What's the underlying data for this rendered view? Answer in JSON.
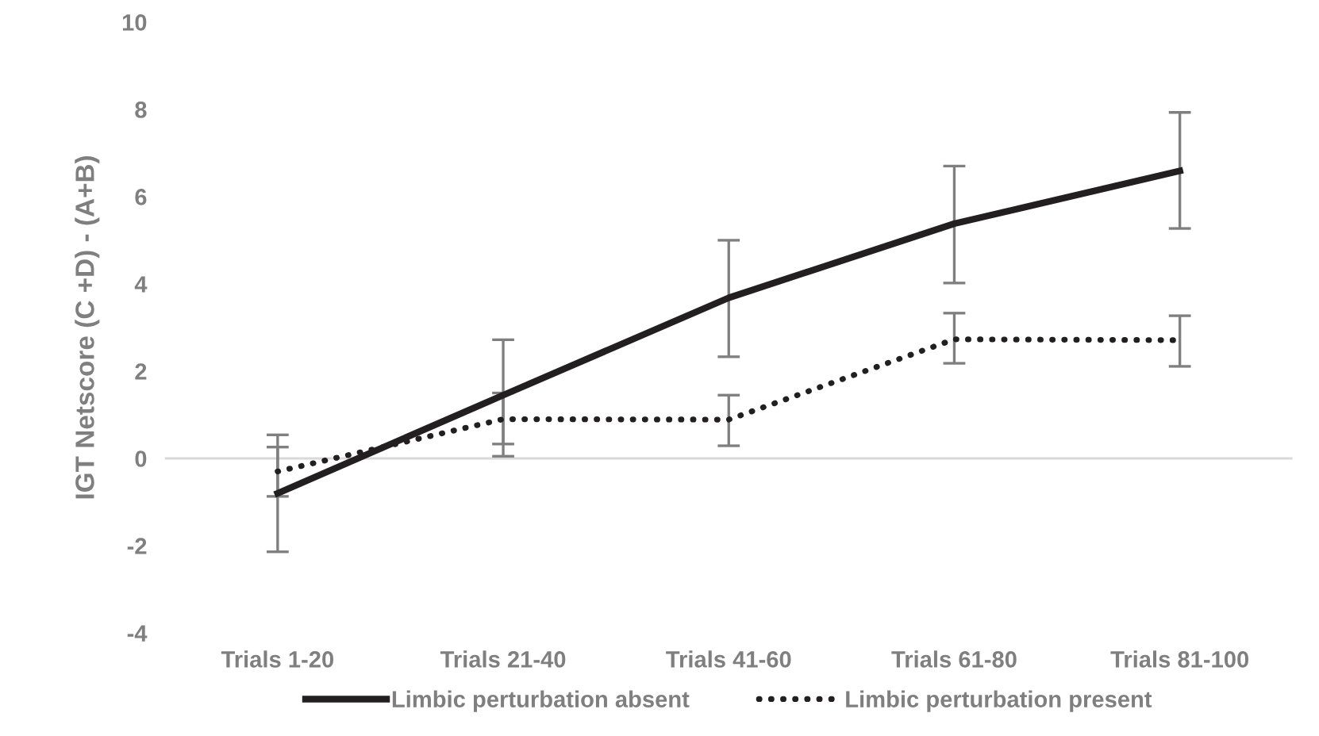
{
  "chart_data": {
    "type": "line",
    "ylabel": "IGT Netscore (C +D) - (A+B)",
    "categories": [
      "Trials 1-20",
      "Trials 21-40",
      "Trials 41-60",
      "Trials 61-80",
      "Trials 81-100"
    ],
    "series": [
      {
        "name": "Limbic perturbation absent",
        "color": "#231f20",
        "line_style": "solid",
        "values": [
          -0.8,
          1.45,
          3.68,
          5.38,
          6.59
        ],
        "errors": [
          [
            -2.14,
            0.54
          ],
          [
            0.05,
            2.72
          ],
          [
            2.33,
            5.0
          ],
          [
            4.02,
            6.7
          ],
          [
            5.27,
            7.93
          ]
        ]
      },
      {
        "name": "Limbic perturbation present",
        "color": "#231f20",
        "line_style": "dotted",
        "values": [
          -0.3,
          0.9,
          0.89,
          2.73,
          2.71
        ],
        "errors": [
          [
            -0.87,
            0.26
          ],
          [
            0.33,
            1.5
          ],
          [
            0.29,
            1.45
          ],
          [
            2.18,
            3.33
          ],
          [
            2.11,
            3.27
          ]
        ]
      }
    ],
    "ylim": [
      -4,
      10
    ],
    "yticks": [
      -4,
      -2,
      0,
      2,
      4,
      6,
      8,
      10
    ],
    "ref_lines": [
      {
        "axis": "y",
        "value": 0,
        "color": "#d9d9d9"
      }
    ],
    "grid": false,
    "legend": "bottom",
    "marker": "none"
  }
}
